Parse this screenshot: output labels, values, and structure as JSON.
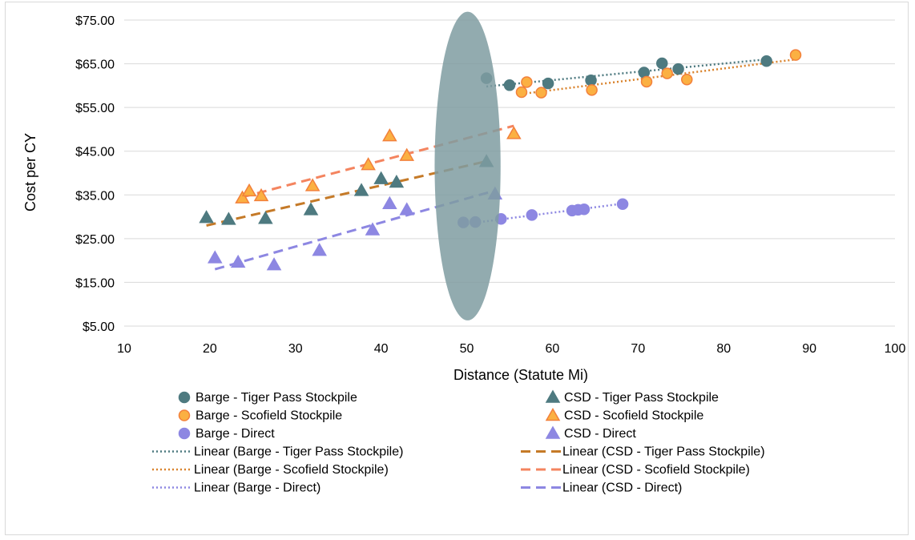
{
  "chart_data": {
    "type": "scatter",
    "title": "",
    "xlabel": "Distance (Statute Mi)",
    "ylabel": "Cost per CY",
    "xlim": [
      10,
      100
    ],
    "ylim": [
      5,
      75
    ],
    "x_ticks": [
      "10",
      "20",
      "30",
      "40",
      "50",
      "60",
      "70",
      "80",
      "90",
      "100"
    ],
    "y_ticks": [
      "$5.00",
      "$15.00",
      "$25.00",
      "$35.00",
      "$45.00",
      "$55.00",
      "$65.00",
      "$75.00"
    ],
    "grid": "horizontal",
    "legend_position": "bottom",
    "series": [
      {
        "name": "Barge - Tiger Pass Stockpile",
        "marker": "circle",
        "color": "#4e7a80",
        "stroke": "#4e7a80",
        "points": [
          [
            52.3,
            61.7
          ],
          [
            55.0,
            60.1
          ],
          [
            59.5,
            60.5
          ],
          [
            64.5,
            61.2
          ],
          [
            70.7,
            63.0
          ],
          [
            72.8,
            65.1
          ],
          [
            74.7,
            63.8
          ],
          [
            85.0,
            65.6
          ]
        ]
      },
      {
        "name": "Barge - Scofield Stockpile",
        "marker": "circle",
        "color": "#fbb042",
        "stroke": "#f2803b",
        "points": [
          [
            56.4,
            58.5
          ],
          [
            57.0,
            60.8
          ],
          [
            58.7,
            58.4
          ],
          [
            64.6,
            59.0
          ],
          [
            71.0,
            60.9
          ],
          [
            73.4,
            62.8
          ],
          [
            75.7,
            61.4
          ],
          [
            88.4,
            67.0
          ]
        ]
      },
      {
        "name": "Barge - Direct",
        "marker": "circle",
        "color": "#8d87e2",
        "stroke": "#8d87e2",
        "points": [
          [
            49.6,
            28.7
          ],
          [
            51.0,
            28.8
          ],
          [
            54.0,
            29.5
          ],
          [
            57.6,
            30.4
          ],
          [
            62.3,
            31.4
          ],
          [
            63.0,
            31.6
          ],
          [
            63.7,
            31.7
          ],
          [
            68.2,
            32.9
          ]
        ]
      },
      {
        "name": "CSD - Tiger Pass Stockpile",
        "marker": "triangle",
        "color": "#4e7a80",
        "stroke": "#4e7a80",
        "points": [
          [
            19.6,
            29.8
          ],
          [
            22.2,
            29.4
          ],
          [
            26.5,
            29.6
          ],
          [
            31.8,
            31.6
          ],
          [
            37.7,
            36.0
          ],
          [
            40.0,
            38.7
          ],
          [
            41.8,
            37.9
          ],
          [
            52.3,
            42.6
          ]
        ]
      },
      {
        "name": "CSD - Scofield Stockpile",
        "marker": "triangle",
        "color": "#fbb042",
        "stroke": "#f2803b",
        "points": [
          [
            23.8,
            34.3
          ],
          [
            24.6,
            35.9
          ],
          [
            26.0,
            34.8
          ],
          [
            32.0,
            37.1
          ],
          [
            38.5,
            41.9
          ],
          [
            41.0,
            48.5
          ],
          [
            43.0,
            44.0
          ],
          [
            55.5,
            49.0
          ]
        ]
      },
      {
        "name": "CSD - Direct",
        "marker": "triangle",
        "color": "#8d87e2",
        "stroke": "#8d87e2",
        "points": [
          [
            20.6,
            20.6
          ],
          [
            23.3,
            19.6
          ],
          [
            27.5,
            19.0
          ],
          [
            32.8,
            22.3
          ],
          [
            39.0,
            27.0
          ],
          [
            41.0,
            33.0
          ],
          [
            43.0,
            31.6
          ],
          [
            53.3,
            35.2
          ]
        ]
      }
    ],
    "trendlines": [
      {
        "name": "Linear (Barge - Tiger Pass Stockpile)",
        "style": "dotted",
        "color": "#4e7a80",
        "x": [
          52.3,
          85.0
        ],
        "y": [
          59.8,
          66.0
        ]
      },
      {
        "name": "Linear (CSD - Tiger Pass Stockpile)",
        "style": "dashed",
        "color": "#c57a28",
        "x": [
          19.6,
          52.3
        ],
        "y": [
          28.0,
          42.7
        ]
      },
      {
        "name": "Linear (Barge - Scofield Stockpile)",
        "style": "dotted",
        "color": "#d9822b",
        "x": [
          56.4,
          88.4
        ],
        "y": [
          58.1,
          66.0
        ]
      },
      {
        "name": "Linear (CSD - Scofield Stockpile)",
        "style": "dashed",
        "color": "#f4845f",
        "x": [
          23.8,
          55.5
        ],
        "y": [
          34.5,
          50.8
        ]
      },
      {
        "name": "Linear (Barge - Direct)",
        "style": "dotted",
        "color": "#8d87e2",
        "x": [
          49.6,
          68.2
        ],
        "y": [
          28.3,
          33.0
        ]
      },
      {
        "name": "Linear (CSD - Direct)",
        "style": "dashed",
        "color": "#8d87e2",
        "x": [
          20.6,
          53.3
        ],
        "y": [
          18.0,
          36.0
        ]
      }
    ],
    "annotations": [
      {
        "type": "ellipse",
        "cx": 50.1,
        "cy": 41.6,
        "rx": 3.85,
        "ry": 35.3,
        "color": "#7f9ca1"
      }
    ]
  }
}
